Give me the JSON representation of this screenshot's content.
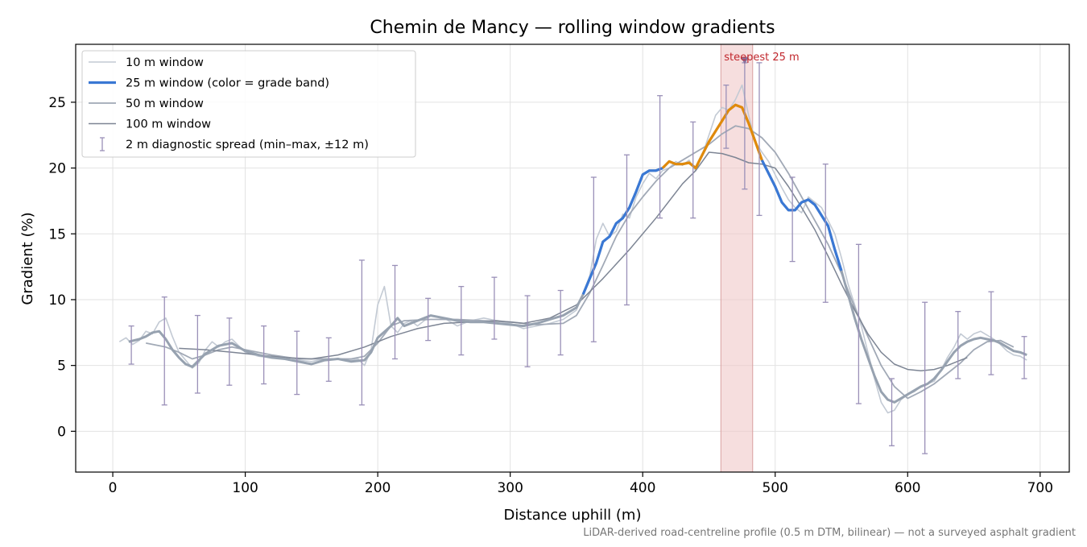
{
  "chart_data": {
    "type": "line",
    "title": "Chemin de Mancy — rolling window gradients",
    "xlabel": "Distance uphill (m)",
    "ylabel": "Gradient (%)",
    "footnote": "LiDAR-derived road-centreline profile (0.5 m DTM, bilinear) — not a surveyed asphalt gradient",
    "xlim": [
      -28,
      722
    ],
    "ylim": [
      -3.1,
      29.4
    ],
    "xticks": [
      0,
      100,
      200,
      300,
      400,
      500,
      600,
      700
    ],
    "yticks": [
      0,
      5,
      10,
      15,
      20,
      25
    ],
    "grid": true,
    "legend_position": "top-left",
    "colors": {
      "w10": "#c3cad4",
      "w25_base": "#97a2b0",
      "w25_blue": "#3a78d4",
      "w25_orange": "#e08a0b",
      "w50": "#a1a9b6",
      "w100": "#7d8594",
      "errorbar": "#9a90b8",
      "highlight": "#f0c8c8",
      "steepest": "#c1272d"
    },
    "highlight_band": {
      "x0": 459,
      "x1": 483,
      "label": "steepest 25 m",
      "marker_x": 477,
      "marker_y": 28.2
    },
    "series": [
      {
        "name": "10 m window",
        "key": "w10",
        "x": [
          5,
          10,
          15,
          20,
          25,
          30,
          35,
          40,
          45,
          50,
          55,
          60,
          65,
          70,
          75,
          80,
          85,
          90,
          95,
          100,
          110,
          120,
          130,
          140,
          150,
          160,
          170,
          180,
          185,
          190,
          195,
          200,
          205,
          210,
          215,
          220,
          225,
          230,
          240,
          250,
          260,
          270,
          280,
          290,
          300,
          310,
          320,
          330,
          340,
          350,
          355,
          360,
          365,
          370,
          375,
          380,
          385,
          390,
          395,
          400,
          405,
          410,
          415,
          420,
          425,
          430,
          435,
          440,
          445,
          450,
          455,
          460,
          465,
          470,
          475,
          480,
          485,
          490,
          495,
          500,
          505,
          510,
          515,
          520,
          525,
          530,
          535,
          540,
          545,
          550,
          555,
          560,
          565,
          570,
          575,
          580,
          585,
          590,
          595,
          600,
          605,
          610,
          615,
          620,
          625,
          630,
          635,
          640,
          645,
          650,
          655,
          660,
          665,
          670,
          675,
          680,
          685,
          690
        ],
        "y": [
          6.8,
          7.1,
          6.6,
          6.9,
          7.6,
          7.4,
          8.3,
          8.6,
          7.2,
          6.0,
          5.4,
          4.8,
          5.2,
          6.2,
          6.8,
          6.4,
          6.8,
          7.0,
          6.5,
          6.0,
          5.7,
          5.6,
          5.5,
          5.4,
          5.3,
          5.5,
          5.5,
          5.4,
          5.5,
          5.0,
          6.2,
          9.6,
          11.0,
          8.0,
          7.5,
          8.2,
          8.4,
          8.0,
          8.8,
          8.6,
          8.0,
          8.4,
          8.6,
          8.4,
          8.2,
          7.8,
          8.0,
          8.2,
          8.5,
          9.2,
          10.5,
          11.8,
          14.6,
          15.8,
          14.8,
          15.2,
          16.5,
          16.2,
          17.8,
          18.8,
          19.6,
          19.2,
          19.8,
          20.0,
          20.5,
          20.2,
          20.6,
          19.8,
          21.0,
          22.5,
          24.0,
          24.6,
          24.4,
          25.2,
          26.3,
          24.0,
          22.0,
          21.2,
          20.5,
          19.5,
          18.5,
          17.6,
          17.0,
          16.6,
          17.8,
          17.4,
          17.0,
          16.0,
          15.0,
          13.2,
          11.2,
          9.6,
          8.0,
          6.0,
          4.0,
          2.2,
          1.4,
          1.6,
          2.4,
          2.8,
          3.0,
          3.4,
          3.6,
          3.8,
          4.6,
          5.6,
          6.4,
          7.4,
          7.0,
          7.4,
          7.6,
          7.3,
          7.0,
          6.6,
          6.1,
          5.8,
          5.7,
          5.4
        ]
      },
      {
        "name": "25 m window (color = grade band)",
        "key": "w25",
        "x": [
          12,
          20,
          25,
          30,
          35,
          40,
          45,
          50,
          55,
          60,
          70,
          80,
          90,
          100,
          110,
          120,
          130,
          140,
          150,
          160,
          170,
          180,
          190,
          195,
          200,
          210,
          215,
          220,
          230,
          240,
          250,
          260,
          270,
          280,
          290,
          300,
          310,
          320,
          330,
          340,
          350,
          355,
          360,
          365,
          370,
          375,
          380,
          385,
          390,
          395,
          400,
          405,
          410,
          415,
          420,
          425,
          430,
          435,
          440,
          445,
          450,
          455,
          460,
          465,
          470,
          475,
          480,
          485,
          490,
          495,
          500,
          505,
          510,
          515,
          520,
          525,
          530,
          535,
          540,
          545,
          550,
          555,
          560,
          565,
          570,
          575,
          580,
          585,
          590,
          595,
          600,
          605,
          610,
          615,
          620,
          625,
          630,
          635,
          640,
          645,
          650,
          655,
          660,
          665,
          670,
          675,
          680,
          685,
          690
        ],
        "y": [
          6.8,
          7.0,
          7.2,
          7.5,
          7.6,
          7.0,
          6.2,
          5.6,
          5.1,
          4.9,
          5.9,
          6.5,
          6.7,
          6.1,
          5.8,
          5.6,
          5.5,
          5.3,
          5.1,
          5.4,
          5.5,
          5.3,
          5.4,
          6.0,
          7.1,
          8.0,
          8.6,
          8.0,
          8.4,
          8.8,
          8.6,
          8.4,
          8.3,
          8.3,
          8.2,
          8.1,
          8.0,
          8.2,
          8.5,
          8.8,
          9.4,
          10.4,
          11.6,
          12.8,
          14.4,
          14.8,
          15.8,
          16.2,
          17.0,
          18.2,
          19.5,
          19.8,
          19.8,
          20.0,
          20.5,
          20.3,
          20.3,
          20.4,
          20.0,
          21.0,
          22.0,
          22.8,
          23.6,
          24.4,
          24.8,
          24.6,
          23.4,
          22.0,
          20.6,
          19.6,
          18.6,
          17.4,
          16.8,
          16.8,
          17.4,
          17.6,
          17.2,
          16.4,
          15.6,
          13.8,
          12.2,
          10.4,
          8.6,
          7.0,
          5.6,
          4.2,
          3.0,
          2.4,
          2.2,
          2.5,
          2.8,
          3.1,
          3.4,
          3.6,
          4.0,
          4.6,
          5.3,
          6.0,
          6.5,
          6.8,
          7.0,
          7.1,
          7.0,
          6.9,
          6.7,
          6.4,
          6.1,
          6.0,
          5.8
        ],
        "band_segments": [
          {
            "color_key": "w25_blue",
            "x0": 352,
            "x1": 415
          },
          {
            "color_key": "w25_orange",
            "x0": 415,
            "x1": 490
          },
          {
            "color_key": "w25_blue",
            "x0": 490,
            "x1": 553
          }
        ]
      },
      {
        "name": "50 m window",
        "key": "w50",
        "x": [
          25,
          40,
          50,
          60,
          70,
          80,
          90,
          100,
          120,
          140,
          160,
          180,
          190,
          200,
          210,
          220,
          240,
          260,
          280,
          300,
          320,
          340,
          350,
          360,
          370,
          380,
          390,
          400,
          410,
          420,
          430,
          440,
          450,
          460,
          470,
          480,
          490,
          500,
          510,
          520,
          530,
          540,
          550,
          560,
          570,
          580,
          590,
          600,
          610,
          620,
          630,
          640,
          650,
          660,
          670,
          680
        ],
        "y": [
          6.7,
          6.4,
          6.0,
          5.5,
          5.8,
          6.2,
          6.4,
          6.2,
          5.8,
          5.5,
          5.5,
          5.5,
          5.7,
          6.7,
          8.0,
          8.4,
          8.5,
          8.5,
          8.4,
          8.3,
          8.1,
          8.2,
          8.8,
          10.5,
          12.6,
          14.8,
          16.5,
          17.8,
          19.0,
          20.0,
          20.6,
          21.2,
          21.8,
          22.6,
          23.2,
          23.0,
          22.3,
          21.2,
          19.6,
          17.8,
          16.0,
          14.2,
          12.0,
          9.4,
          7.2,
          5.0,
          3.4,
          2.5,
          3.0,
          3.6,
          4.4,
          5.2,
          6.2,
          6.8,
          6.9,
          6.4
        ]
      },
      {
        "name": "100 m window",
        "key": "w100",
        "x": [
          50,
          70,
          90,
          110,
          130,
          150,
          170,
          190,
          210,
          230,
          250,
          270,
          290,
          310,
          330,
          350,
          370,
          390,
          410,
          430,
          440,
          450,
          460,
          470,
          480,
          490,
          500,
          510,
          520,
          530,
          540,
          550,
          560,
          570,
          580,
          590,
          600,
          610,
          620,
          630,
          640,
          645
        ],
        "y": [
          6.3,
          6.2,
          6.0,
          5.8,
          5.6,
          5.5,
          5.8,
          6.4,
          7.2,
          7.8,
          8.2,
          8.3,
          8.4,
          8.2,
          8.6,
          9.6,
          11.6,
          13.8,
          16.2,
          18.8,
          19.8,
          21.2,
          21.1,
          20.8,
          20.4,
          20.3,
          20.0,
          18.6,
          17.0,
          15.3,
          13.3,
          11.2,
          9.2,
          7.4,
          6.0,
          5.1,
          4.7,
          4.6,
          4.7,
          5.0,
          5.4,
          5.6
        ]
      }
    ],
    "error_bars": {
      "name": "2 m diagnostic spread (min–max, ±12 m)",
      "x": [
        14,
        39,
        64,
        88,
        114,
        139,
        163,
        188,
        213,
        238,
        263,
        288,
        313,
        338,
        363,
        388,
        413,
        438,
        463,
        477,
        488,
        513,
        538,
        563,
        588,
        613,
        638,
        663,
        688
      ],
      "low": [
        5.1,
        2.0,
        2.9,
        3.5,
        3.6,
        2.8,
        3.8,
        2.0,
        5.5,
        6.9,
        5.8,
        7.0,
        4.9,
        5.8,
        6.8,
        9.6,
        16.2,
        16.2,
        21.5,
        18.4,
        16.4,
        12.9,
        9.8,
        2.1,
        -1.1,
        -1.7,
        4.0,
        4.3,
        4.0
      ],
      "high": [
        8.0,
        10.2,
        8.8,
        8.6,
        8.0,
        7.6,
        7.1,
        13.0,
        12.6,
        10.1,
        11.0,
        11.7,
        10.3,
        10.7,
        19.3,
        21.0,
        25.5,
        23.5,
        26.3,
        28.0,
        28.0,
        19.3,
        20.3,
        14.2,
        4.0,
        9.8,
        9.1,
        10.6,
        7.2
      ]
    }
  }
}
